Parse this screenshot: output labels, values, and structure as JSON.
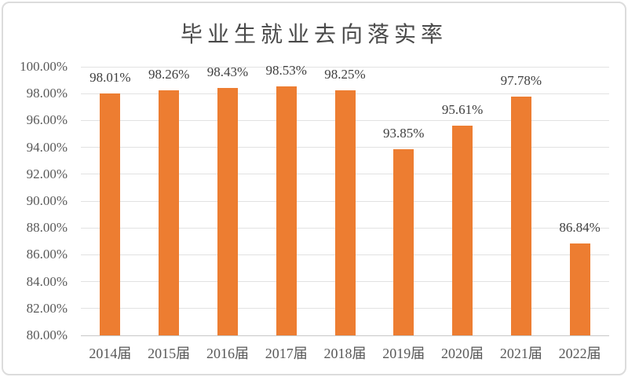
{
  "chart_data": {
    "type": "bar",
    "title": "毕业生就业去向落实率",
    "categories": [
      "2014届",
      "2015届",
      "2016届",
      "2017届",
      "2018届",
      "2019届",
      "2020届",
      "2021届",
      "2022届"
    ],
    "values": [
      98.01,
      98.26,
      98.43,
      98.53,
      98.25,
      93.85,
      95.61,
      97.78,
      86.84
    ],
    "data_labels": [
      "98.01%",
      "98.26%",
      "98.43%",
      "98.53%",
      "98.25%",
      "93.85%",
      "95.61%",
      "97.78%",
      "86.84%"
    ],
    "xlabel": "",
    "ylabel": "",
    "ylim": [
      80,
      100
    ],
    "ytick_step": 2,
    "ytick_labels": [
      "100.00%",
      "98.00%",
      "96.00%",
      "94.00%",
      "92.00%",
      "90.00%",
      "88.00%",
      "86.00%",
      "84.00%",
      "82.00%",
      "80.00%"
    ],
    "grid": true,
    "legend": "none"
  },
  "colors": {
    "bar": "#ED7D31",
    "gridline": "#E2E2E2",
    "axis_line": "#C8C8C8",
    "title_text": "#4A4A4A",
    "axis_text": "#595959",
    "data_label_text": "#3F3F3F",
    "border": "#DCDCDC",
    "background": "#FFFFFF"
  }
}
